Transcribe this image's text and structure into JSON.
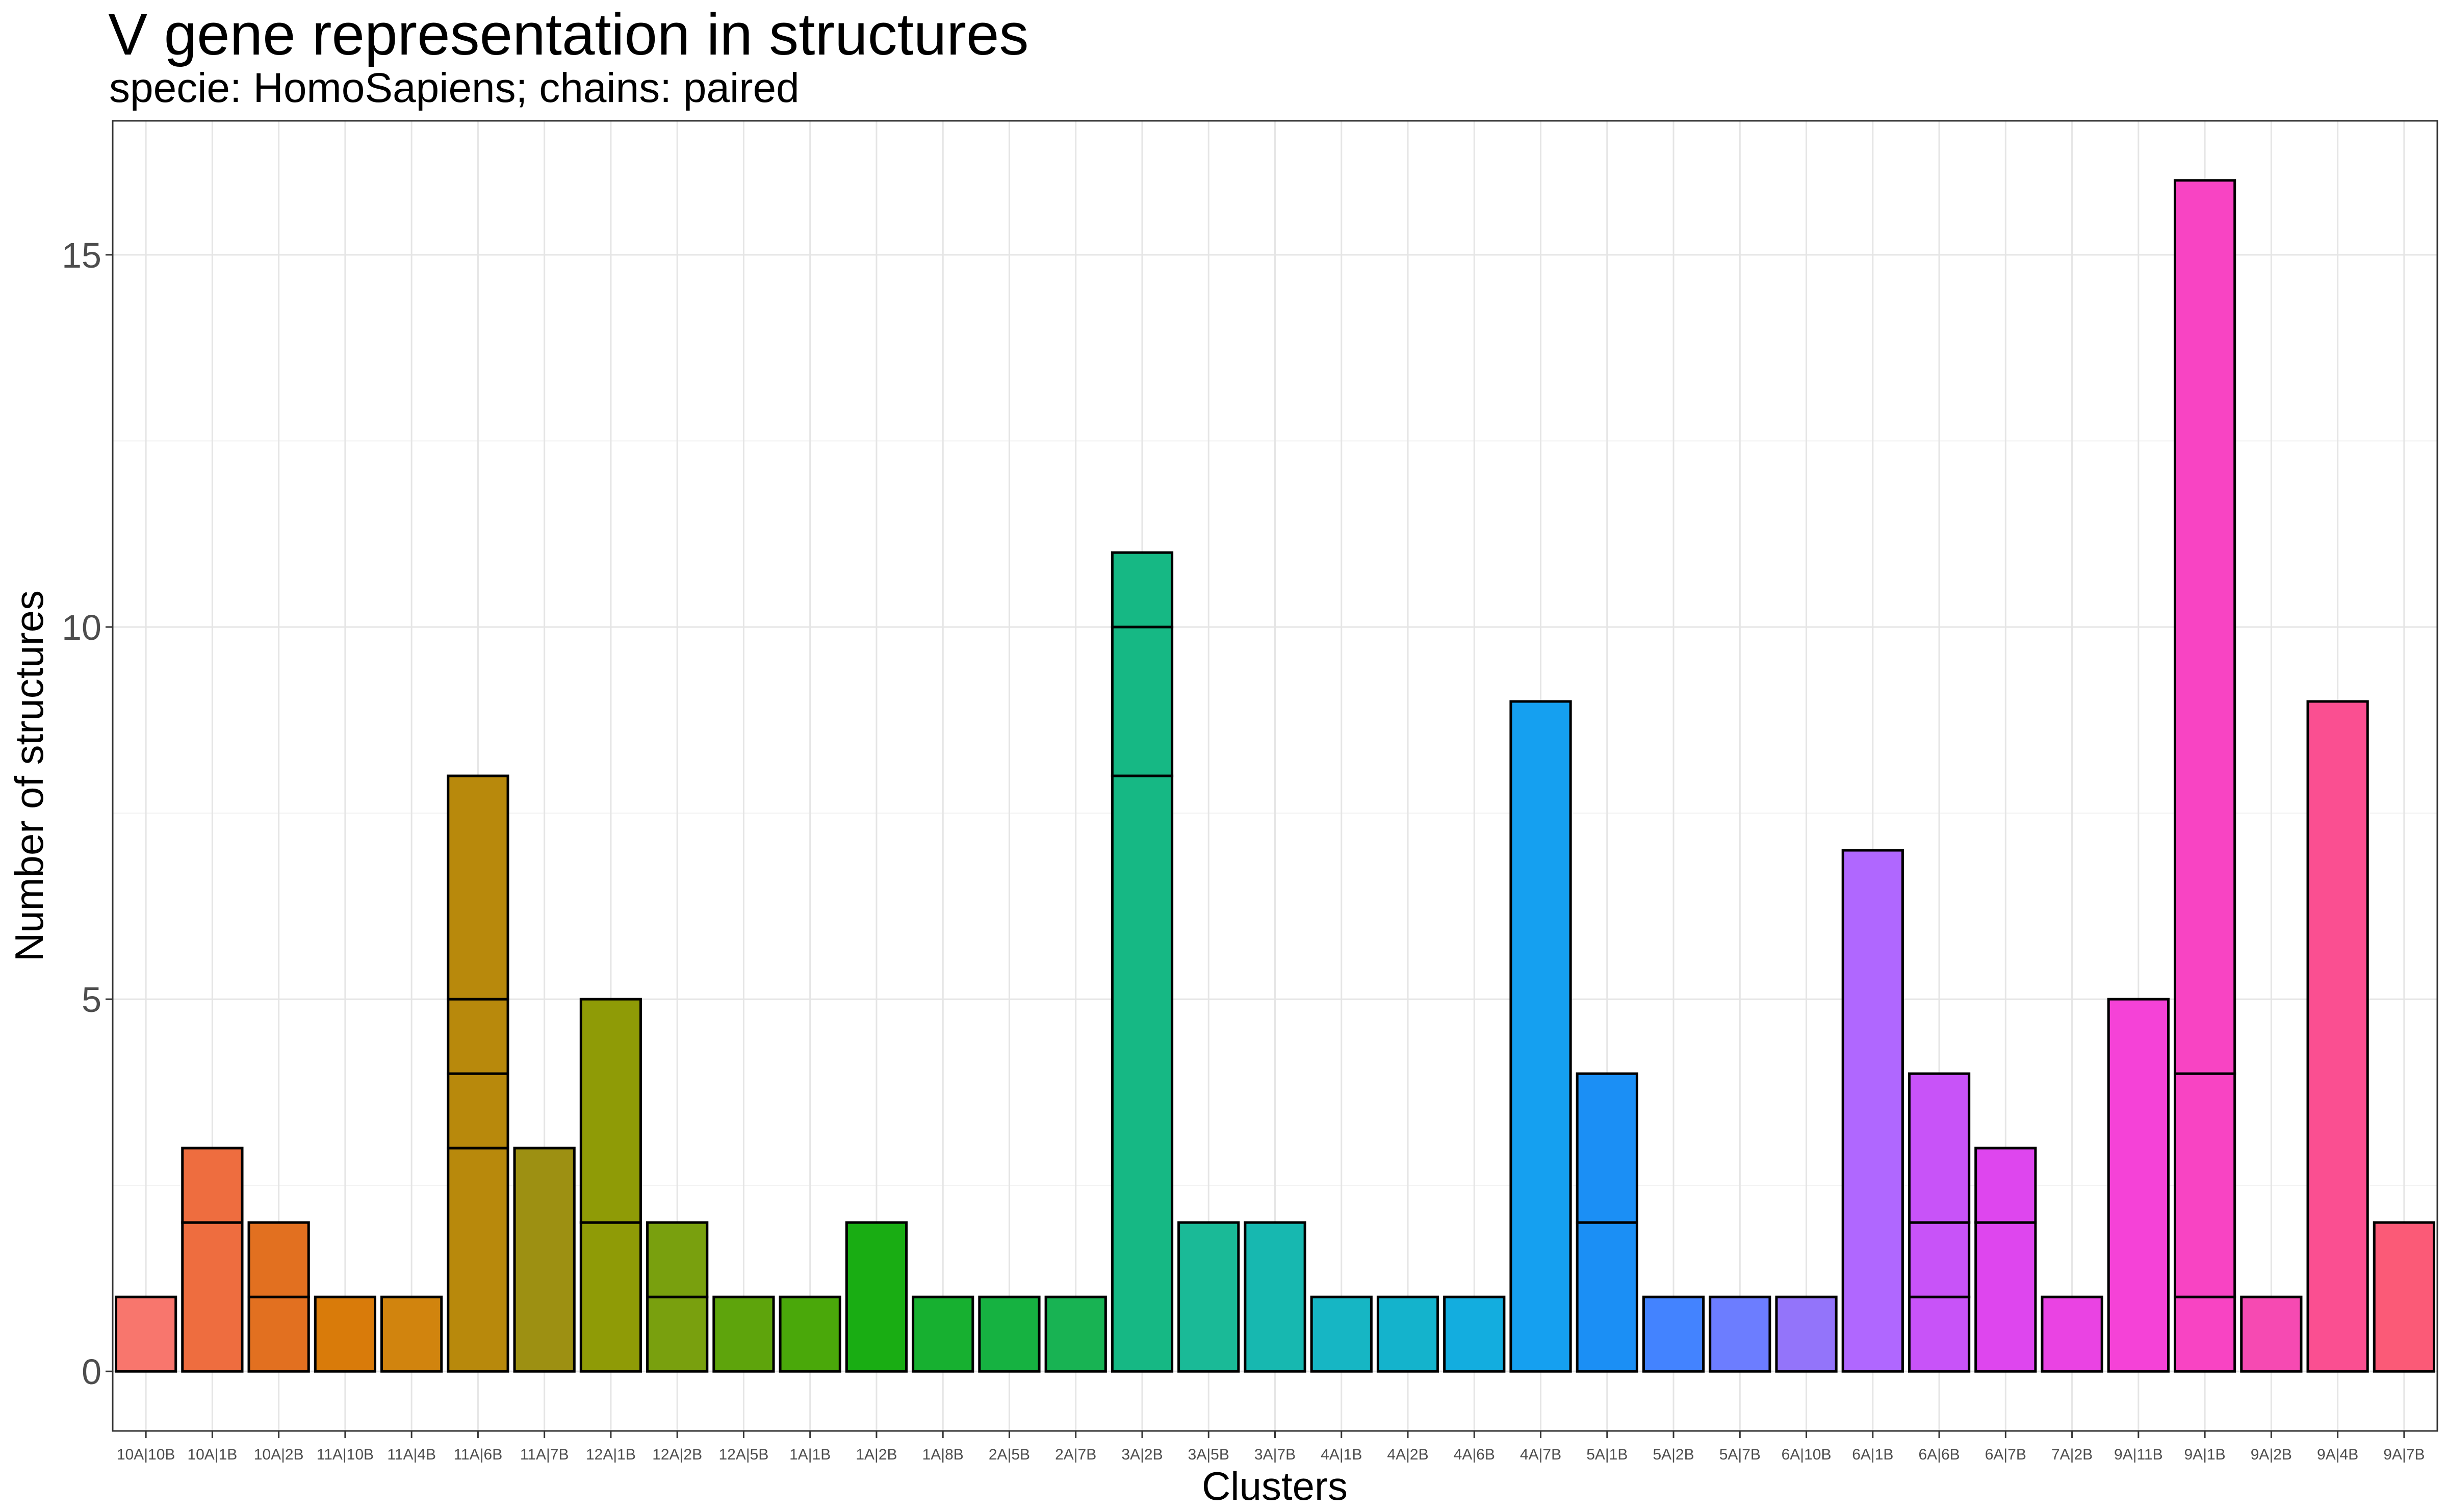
{
  "chart_data": {
    "type": "bar",
    "stacked": true,
    "title": "V gene representation in structures",
    "subtitle": "specie: HomoSapiens; chains: paired",
    "xlabel": "Clusters",
    "ylabel": "Number of structures",
    "ylim": [
      -0.8,
      16.8
    ],
    "yticks": [
      0,
      5,
      10,
      15
    ],
    "grid": true,
    "legend": "none",
    "categories": [
      "10A|10B",
      "10A|1B",
      "10A|2B",
      "11A|10B",
      "11A|4B",
      "11A|6B",
      "11A|7B",
      "12A|1B",
      "12A|2B",
      "12A|5B",
      "1A|1B",
      "1A|2B",
      "1A|8B",
      "2A|5B",
      "2A|7B",
      "3A|2B",
      "3A|5B",
      "3A|7B",
      "4A|1B",
      "4A|2B",
      "4A|6B",
      "4A|7B",
      "5A|1B",
      "5A|2B",
      "5A|7B",
      "6A|10B",
      "6A|1B",
      "6A|6B",
      "6A|7B",
      "7A|2B",
      "9A|11B",
      "9A|1B",
      "9A|2B",
      "9A|4B",
      "9A|7B"
    ],
    "values": [
      1,
      3,
      2,
      1,
      1,
      8,
      3,
      5,
      2,
      1,
      1,
      2,
      1,
      1,
      1,
      11,
      2,
      2,
      1,
      1,
      1,
      9,
      4,
      1,
      1,
      1,
      7,
      4,
      3,
      1,
      5,
      16,
      1,
      9,
      2
    ],
    "segments": [
      [
        1
      ],
      [
        2,
        1
      ],
      [
        1,
        1
      ],
      [
        1
      ],
      [
        1
      ],
      [
        3,
        1,
        1,
        3
      ],
      [
        3
      ],
      [
        2,
        3
      ],
      [
        1,
        1
      ],
      [
        1
      ],
      [
        1
      ],
      [
        2
      ],
      [
        1
      ],
      [
        1
      ],
      [
        1
      ],
      [
        8,
        2,
        1
      ],
      [
        2
      ],
      [
        2
      ],
      [
        1
      ],
      [
        1
      ],
      [
        1
      ],
      [
        9
      ],
      [
        2,
        2
      ],
      [
        1
      ],
      [
        1
      ],
      [
        1
      ],
      [
        7
      ],
      [
        1,
        1,
        2
      ],
      [
        2,
        1
      ],
      [
        1
      ],
      [
        5
      ],
      [
        1,
        3,
        12
      ],
      [
        1
      ],
      [
        9
      ],
      [
        2
      ]
    ],
    "colors": [
      "#F8766D",
      "#EE6D3F",
      "#E27020",
      "#D97B0A",
      "#D1840E",
      "#B8890C",
      "#9D9012",
      "#8F9B06",
      "#79A00E",
      "#5EA40C",
      "#4AA80A",
      "#19AD13",
      "#17B030",
      "#16B241",
      "#18B353",
      "#16B884",
      "#1ABA97",
      "#17B8B0",
      "#16B6C4",
      "#14B3CC",
      "#13ADDF",
      "#15A0F0",
      "#1B8FF5",
      "#4383FF",
      "#6C7DFF",
      "#9374FA",
      "#B067FF",
      "#C853F8",
      "#DE46EE",
      "#EA43E3",
      "#F542D7",
      "#F844C3",
      "#F64AB2",
      "#FA4F91",
      "#FB5A77"
    ]
  }
}
